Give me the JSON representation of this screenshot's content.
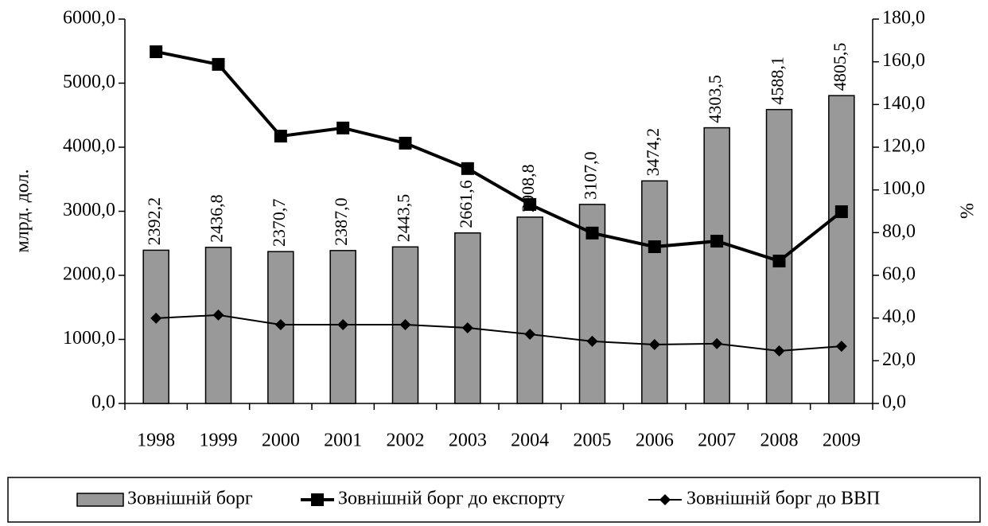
{
  "chart_data": {
    "type": "bar",
    "categories": [
      "1998",
      "1999",
      "2000",
      "2001",
      "2002",
      "2003",
      "2004",
      "2005",
      "2006",
      "2007",
      "2008",
      "2009"
    ],
    "ylabel": "млрд. дол.",
    "y2label": "%",
    "ylim": [
      0,
      6000
    ],
    "yticks": [
      {
        "value": 0,
        "label": "0,0"
      },
      {
        "value": 1000,
        "label": "1000,0"
      },
      {
        "value": 2000,
        "label": "2000,0"
      },
      {
        "value": 3000,
        "label": "3000,0"
      },
      {
        "value": 4000,
        "label": "4000,0"
      },
      {
        "value": 5000,
        "label": "5000,0"
      },
      {
        "value": 6000,
        "label": "6000,0"
      }
    ],
    "y2lim": [
      0,
      180
    ],
    "y2ticks": [
      {
        "value": 0,
        "label": "0,0"
      },
      {
        "value": 20,
        "label": "20,0"
      },
      {
        "value": 40,
        "label": "40,0"
      },
      {
        "value": 60,
        "label": "60,0"
      },
      {
        "value": 80,
        "label": "80,0"
      },
      {
        "value": 100,
        "label": "100,0"
      },
      {
        "value": 120,
        "label": "120,0"
      },
      {
        "value": 140,
        "label": "140,0"
      },
      {
        "value": 160,
        "label": "160,0"
      },
      {
        "value": 180,
        "label": "180,0"
      }
    ],
    "series": [
      {
        "name": "Зовнішній борг",
        "type": "bar",
        "color": "#999999",
        "values": [
          2392.2,
          2436.8,
          2370.7,
          2387.0,
          2443.5,
          2661.6,
          2908.8,
          3107.0,
          3474.2,
          4303.5,
          4588.1,
          4805.5
        ],
        "value_labels": [
          "2392,2",
          "2436,8",
          "2370,7",
          "2387,0",
          "2443,5",
          "2661,6",
          "2908,8",
          "3107,0",
          "3474,2",
          "4303,5",
          "4588,1",
          "4805,5"
        ]
      },
      {
        "name": "Зовнішній борг до експорту",
        "type": "line",
        "marker": "square",
        "axis": "y2",
        "color": "#000000",
        "values": [
          164.7,
          158.8,
          125.2,
          129.0,
          121.9,
          110.0,
          93.2,
          79.8,
          73.4,
          76.0,
          66.7,
          89.8
        ]
      },
      {
        "name": "Зовнішній борг до ВВП",
        "type": "line",
        "marker": "diamond",
        "axis": "y2",
        "color": "#000000",
        "values": [
          39.9,
          41.4,
          36.9,
          36.9,
          36.9,
          35.4,
          32.4,
          29.1,
          27.6,
          28.0,
          24.6,
          26.8
        ]
      }
    ]
  }
}
